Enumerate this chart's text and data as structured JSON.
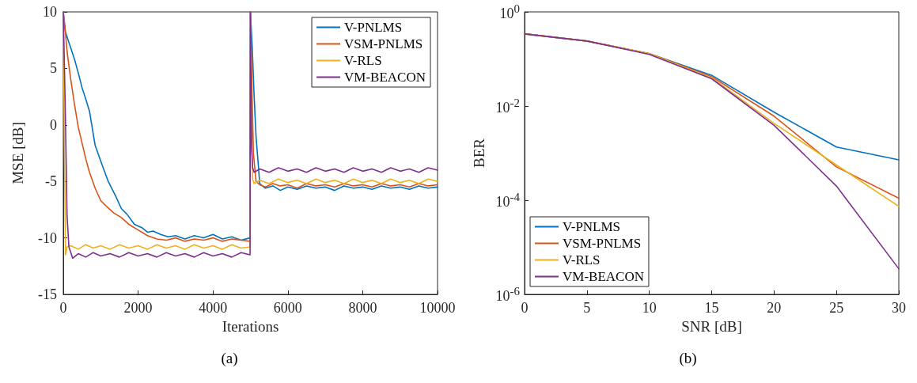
{
  "chart_data": [
    {
      "type": "line",
      "xlabel": "Iterations",
      "ylabel": "MSE [dB]",
      "xlim": [
        0,
        10000
      ],
      "xticks": [
        0,
        2000,
        4000,
        6000,
        8000,
        10000
      ],
      "ylim": [
        -15,
        10
      ],
      "yticks": [
        -15,
        -10,
        -5,
        0,
        5,
        10
      ],
      "grid": false,
      "legend": "top right",
      "marker": "none",
      "line_style": "solid",
      "annotations": [
        "(a)"
      ],
      "series": [
        {
          "name": "V-PNLMS",
          "color": "#0072bd",
          "x": [
            0,
            50,
            100,
            200,
            300,
            400,
            500,
            600,
            700,
            850,
            1000,
            1200,
            1400,
            1550,
            1700,
            1900,
            2100,
            2250,
            2400,
            2600,
            2800,
            3000,
            3250,
            3500,
            3750,
            4000,
            4250,
            4500,
            4750,
            4990,
            5000,
            5050,
            5100,
            5150,
            5250,
            5400,
            5600,
            5800,
            6000,
            6250,
            6500,
            6750,
            7000,
            7250,
            7500,
            7750,
            8000,
            8250,
            8500,
            8750,
            9000,
            9250,
            9500,
            9750,
            10000
          ],
          "values": [
            10,
            8.3,
            7.8,
            6.8,
            5.8,
            4.6,
            3.3,
            2.3,
            1.2,
            -1.8,
            -3.2,
            -5,
            -6.3,
            -7.4,
            -7.9,
            -8.8,
            -9.1,
            -9.5,
            -9.4,
            -9.7,
            -9.9,
            -9.8,
            -10.1,
            -9.8,
            -10,
            -9.7,
            -10.1,
            -9.9,
            -10.2,
            -10,
            10,
            6.8,
            2.5,
            -1,
            -5.2,
            -5.6,
            -5.4,
            -5.8,
            -5.5,
            -5.7,
            -5.4,
            -5.6,
            -5.5,
            -5.8,
            -5.4,
            -5.6,
            -5.5,
            -5.7,
            -5.4,
            -5.6,
            -5.5,
            -5.7,
            -5.4,
            -5.6,
            -5.5
          ]
        },
        {
          "name": "VSM-PNLMS",
          "color": "#d95319",
          "x": [
            0,
            50,
            100,
            200,
            300,
            400,
            500,
            600,
            700,
            850,
            1000,
            1150,
            1350,
            1550,
            1750,
            2000,
            2250,
            2500,
            2750,
            3000,
            3250,
            3500,
            3750,
            4000,
            4250,
            4500,
            4750,
            4990,
            5000,
            5030,
            5080,
            5150,
            5250,
            5400,
            5600,
            5800,
            6000,
            6250,
            6500,
            6750,
            7000,
            7250,
            7500,
            7750,
            8000,
            8250,
            8500,
            8750,
            9000,
            9250,
            9500,
            9750,
            10000
          ],
          "values": [
            10,
            8.5,
            6.5,
            4,
            1.8,
            -0.2,
            -1.6,
            -3,
            -4.2,
            -5.6,
            -6.7,
            -7.2,
            -7.8,
            -8.2,
            -8.8,
            -9.3,
            -9.8,
            -10.1,
            -10.2,
            -10,
            -10.3,
            -10.1,
            -10.2,
            -10,
            -10.3,
            -10.1,
            -10.2,
            -10.3,
            10,
            5,
            -2.5,
            -5,
            -5.3,
            -5.5,
            -5.2,
            -5.4,
            -5.3,
            -5.6,
            -5.2,
            -5.4,
            -5.3,
            -5.5,
            -5.2,
            -5.4,
            -5.3,
            -5.5,
            -5.2,
            -5.4,
            -5.3,
            -5.5,
            -5.2,
            -5.4,
            -5.3
          ]
        },
        {
          "name": "V-RLS",
          "color": "#edb120",
          "x": [
            0,
            30,
            60,
            100,
            200,
            400,
            600,
            800,
            1000,
            1250,
            1500,
            1750,
            2000,
            2250,
            2500,
            2750,
            3000,
            3250,
            3500,
            3750,
            4000,
            4250,
            4500,
            4750,
            4990,
            5000,
            5030,
            5060,
            5100,
            5250,
            5500,
            5750,
            6000,
            6250,
            6500,
            6750,
            7000,
            7250,
            7500,
            7750,
            8000,
            8250,
            8500,
            8750,
            9000,
            9250,
            9500,
            9750,
            10000
          ],
          "values": [
            10,
            -2,
            -11.5,
            -10.8,
            -10.7,
            -11,
            -10.6,
            -10.9,
            -10.7,
            -11,
            -10.6,
            -10.9,
            -10.7,
            -11,
            -10.6,
            -10.9,
            -10.7,
            -11,
            -10.6,
            -10.9,
            -10.7,
            -11,
            -10.6,
            -10.9,
            -10.8,
            10,
            0,
            -4.8,
            -5.2,
            -4.9,
            -5.2,
            -4.8,
            -5.1,
            -4.9,
            -5.2,
            -4.8,
            -5.1,
            -4.9,
            -5.2,
            -4.8,
            -5.1,
            -4.9,
            -5.2,
            -4.8,
            -5.1,
            -4.9,
            -5.2,
            -4.8,
            -5
          ]
        },
        {
          "name": "VM-BEACON",
          "color": "#7e2f8e",
          "x": [
            0,
            50,
            100,
            150,
            250,
            400,
            600,
            800,
            1000,
            1250,
            1500,
            1750,
            2000,
            2250,
            2500,
            2750,
            3000,
            3250,
            3500,
            3750,
            4000,
            4250,
            4500,
            4750,
            4990,
            5000,
            5030,
            5060,
            5100,
            5250,
            5500,
            5750,
            6000,
            6250,
            6500,
            6750,
            7000,
            7250,
            7500,
            7750,
            8000,
            8250,
            8500,
            8750,
            9000,
            9250,
            9500,
            9750,
            10000
          ],
          "values": [
            10,
            2,
            -8,
            -10.8,
            -11.8,
            -11.4,
            -11.7,
            -11.3,
            -11.6,
            -11.4,
            -11.7,
            -11.3,
            -11.6,
            -11.4,
            -11.7,
            -11.3,
            -11.6,
            -11.4,
            -11.7,
            -11.3,
            -11.6,
            -11.4,
            -11.7,
            -11.3,
            -11.5,
            10,
            -2,
            -3.8,
            -4.2,
            -3.9,
            -4.2,
            -3.8,
            -4.1,
            -3.9,
            -4.2,
            -3.8,
            -4.1,
            -3.9,
            -4.2,
            -3.8,
            -4.1,
            -3.9,
            -4.2,
            -3.8,
            -4.1,
            -3.9,
            -4.2,
            -3.8,
            -4
          ]
        }
      ]
    },
    {
      "type": "line",
      "xlabel": "SNR [dB]",
      "ylabel": "BER",
      "xlim": [
        0,
        30
      ],
      "xticks": [
        0,
        5,
        10,
        15,
        20,
        25,
        30
      ],
      "log": "y",
      "ylim": [
        1e-06,
        1
      ],
      "yticks": [
        {
          "value": 1e-06,
          "label": "10$^{-6}$"
        },
        {
          "value": 0.0001,
          "label": "10$^{-4}$"
        },
        {
          "value": 0.01,
          "label": "10$^{-2}$"
        },
        {
          "value": 1,
          "label": "10$^{0}$"
        }
      ],
      "grid": false,
      "legend": "bottom left",
      "marker": "none",
      "line_style": "solid",
      "annotations": [
        "(b)"
      ],
      "x": [
        0,
        5,
        10,
        15,
        20,
        25,
        30
      ],
      "series": [
        {
          "name": "V-PNLMS",
          "color": "#0072bd",
          "values": [
            0.343,
            0.24,
            0.13,
            0.045,
            0.0074,
            0.00135,
            0.00072
          ]
        },
        {
          "name": "VSM-PNLMS",
          "color": "#d95319",
          "values": [
            0.34,
            0.24,
            0.13,
            0.042,
            0.0061,
            0.00051,
            0.00011
          ]
        },
        {
          "name": "V-RLS",
          "color": "#edb120",
          "values": [
            0.34,
            0.24,
            0.13,
            0.04,
            0.0043,
            0.00056,
            7.4e-05
          ]
        },
        {
          "name": "VM-BEACON",
          "color": "#7e2f8e",
          "values": [
            0.34,
            0.24,
            0.125,
            0.038,
            0.0039,
            0.0002,
            3.5e-06
          ]
        }
      ]
    }
  ]
}
